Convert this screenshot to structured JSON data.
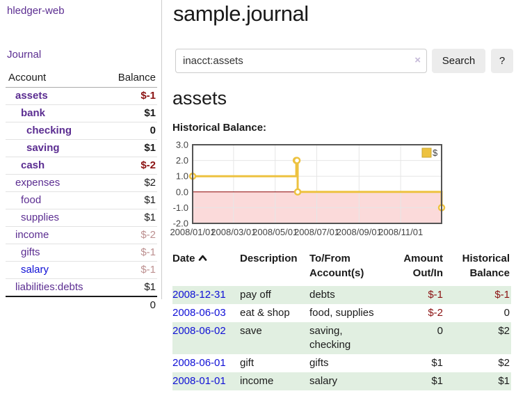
{
  "colors": {
    "purple_link": "#5b2d91",
    "blue_link": "#0f0fd6",
    "neg_dark": "#8b1212",
    "neg_soft": "#bc8f8f",
    "row_green": "#e1efe1",
    "clear_icon": "#c5b9d8",
    "chart_line": "#edc240",
    "chart_line_border": "#c9a630",
    "chart_negative_fill": "#fbdada",
    "chart_zero_line": "#8b0000",
    "chart_grid": "#e6e6e6",
    "chart_border": "#545454"
  },
  "app": {
    "title": "hledger-web"
  },
  "sidebar": {
    "journal_link": "Journal",
    "account_header": "Account",
    "balance_header": "Balance",
    "rows": [
      {
        "account": "assets",
        "balance": "$-1",
        "depth": 1,
        "in_account": true,
        "tone": "neg"
      },
      {
        "account": "bank",
        "balance": "$1",
        "depth": 2,
        "in_account": true,
        "tone": "pos"
      },
      {
        "account": "checking",
        "balance": "0",
        "depth": 3,
        "in_account": true,
        "tone": "pos"
      },
      {
        "account": "saving",
        "balance": "$1",
        "depth": 3,
        "in_account": true,
        "tone": "pos"
      },
      {
        "account": "cash",
        "balance": "$-2",
        "depth": 2,
        "in_account": true,
        "tone": "neg"
      },
      {
        "account": "expenses",
        "balance": "$2",
        "depth": 1,
        "in_account": false,
        "tone": "pos"
      },
      {
        "account": "food",
        "balance": "$1",
        "depth": 2,
        "in_account": false,
        "tone": "pos"
      },
      {
        "account": "supplies",
        "balance": "$1",
        "depth": 2,
        "in_account": false,
        "tone": "pos"
      },
      {
        "account": "income",
        "balance": "$-2",
        "depth": 1,
        "in_account": false,
        "tone": "neg-soft"
      },
      {
        "account": "gifts",
        "balance": "$-1",
        "depth": 2,
        "in_account": false,
        "tone": "neg-soft"
      },
      {
        "account": "salary",
        "balance": "$-1",
        "depth": 2,
        "in_account": false,
        "tone": "neg-soft",
        "link_style": "blue"
      },
      {
        "account": "liabilities:debts",
        "balance": "$1",
        "depth": 1,
        "in_account": false,
        "tone": "pos"
      }
    ],
    "total": "0"
  },
  "main": {
    "title": "sample.journal",
    "search": {
      "value": "inacct:assets",
      "clear_icon": "×",
      "button_label": "Search",
      "help_label": "?"
    },
    "account_heading": "assets",
    "chart_label": "Historical Balance:"
  },
  "chart_data": {
    "type": "line",
    "step": true,
    "title": "Historical Balance",
    "series": [
      {
        "name": "$",
        "points": [
          [
            "2008-01-01",
            1
          ],
          [
            "2008-06-01",
            2
          ],
          [
            "2008-06-02",
            2
          ],
          [
            "2008-06-03",
            0
          ],
          [
            "2008-12-31",
            -1
          ]
        ]
      }
    ],
    "x_range": [
      "2008-01-01",
      "2008-12-31"
    ],
    "ylim": [
      -2,
      3
    ],
    "y_ticks": [
      3.0,
      2.0,
      1.0,
      0.0,
      -1.0,
      -2.0
    ],
    "x_ticks": [
      "2008/01/01",
      "2008/03/01",
      "2008/05/01",
      "2008/07/01",
      "2008/09/01",
      "2008/11/01"
    ],
    "grid": true,
    "legend_position": "ne",
    "legend": [
      "$"
    ]
  },
  "register": {
    "headers": [
      {
        "label": "Date",
        "sortable": true
      },
      {
        "label": "Description"
      },
      {
        "label": "To/From Account(s)"
      },
      {
        "label": "Amount Out/In",
        "align": "right"
      },
      {
        "label": "Historical Balance",
        "align": "right"
      }
    ],
    "rows": [
      {
        "date": "2008-12-31",
        "description": "pay off",
        "accounts": "debts",
        "amount": "$-1",
        "amount_tone": "neg",
        "balance": "$-1",
        "balance_tone": "neg",
        "shaded": true
      },
      {
        "date": "2008-06-03",
        "description": "eat & shop",
        "accounts": "food, supplies",
        "amount": "$-2",
        "amount_tone": "neg",
        "balance": "0",
        "balance_tone": "pos",
        "shaded": false
      },
      {
        "date": "2008-06-02",
        "description": "save",
        "accounts": "saving, checking",
        "amount": "0",
        "amount_tone": "pos",
        "balance": "$2",
        "balance_tone": "pos",
        "shaded": true
      },
      {
        "date": "2008-06-01",
        "description": "gift",
        "accounts": "gifts",
        "amount": "$1",
        "amount_tone": "pos",
        "balance": "$2",
        "balance_tone": "pos",
        "shaded": false
      },
      {
        "date": "2008-01-01",
        "description": "income",
        "accounts": "salary",
        "amount": "$1",
        "amount_tone": "pos",
        "balance": "$1",
        "balance_tone": "pos",
        "shaded": true
      }
    ]
  }
}
